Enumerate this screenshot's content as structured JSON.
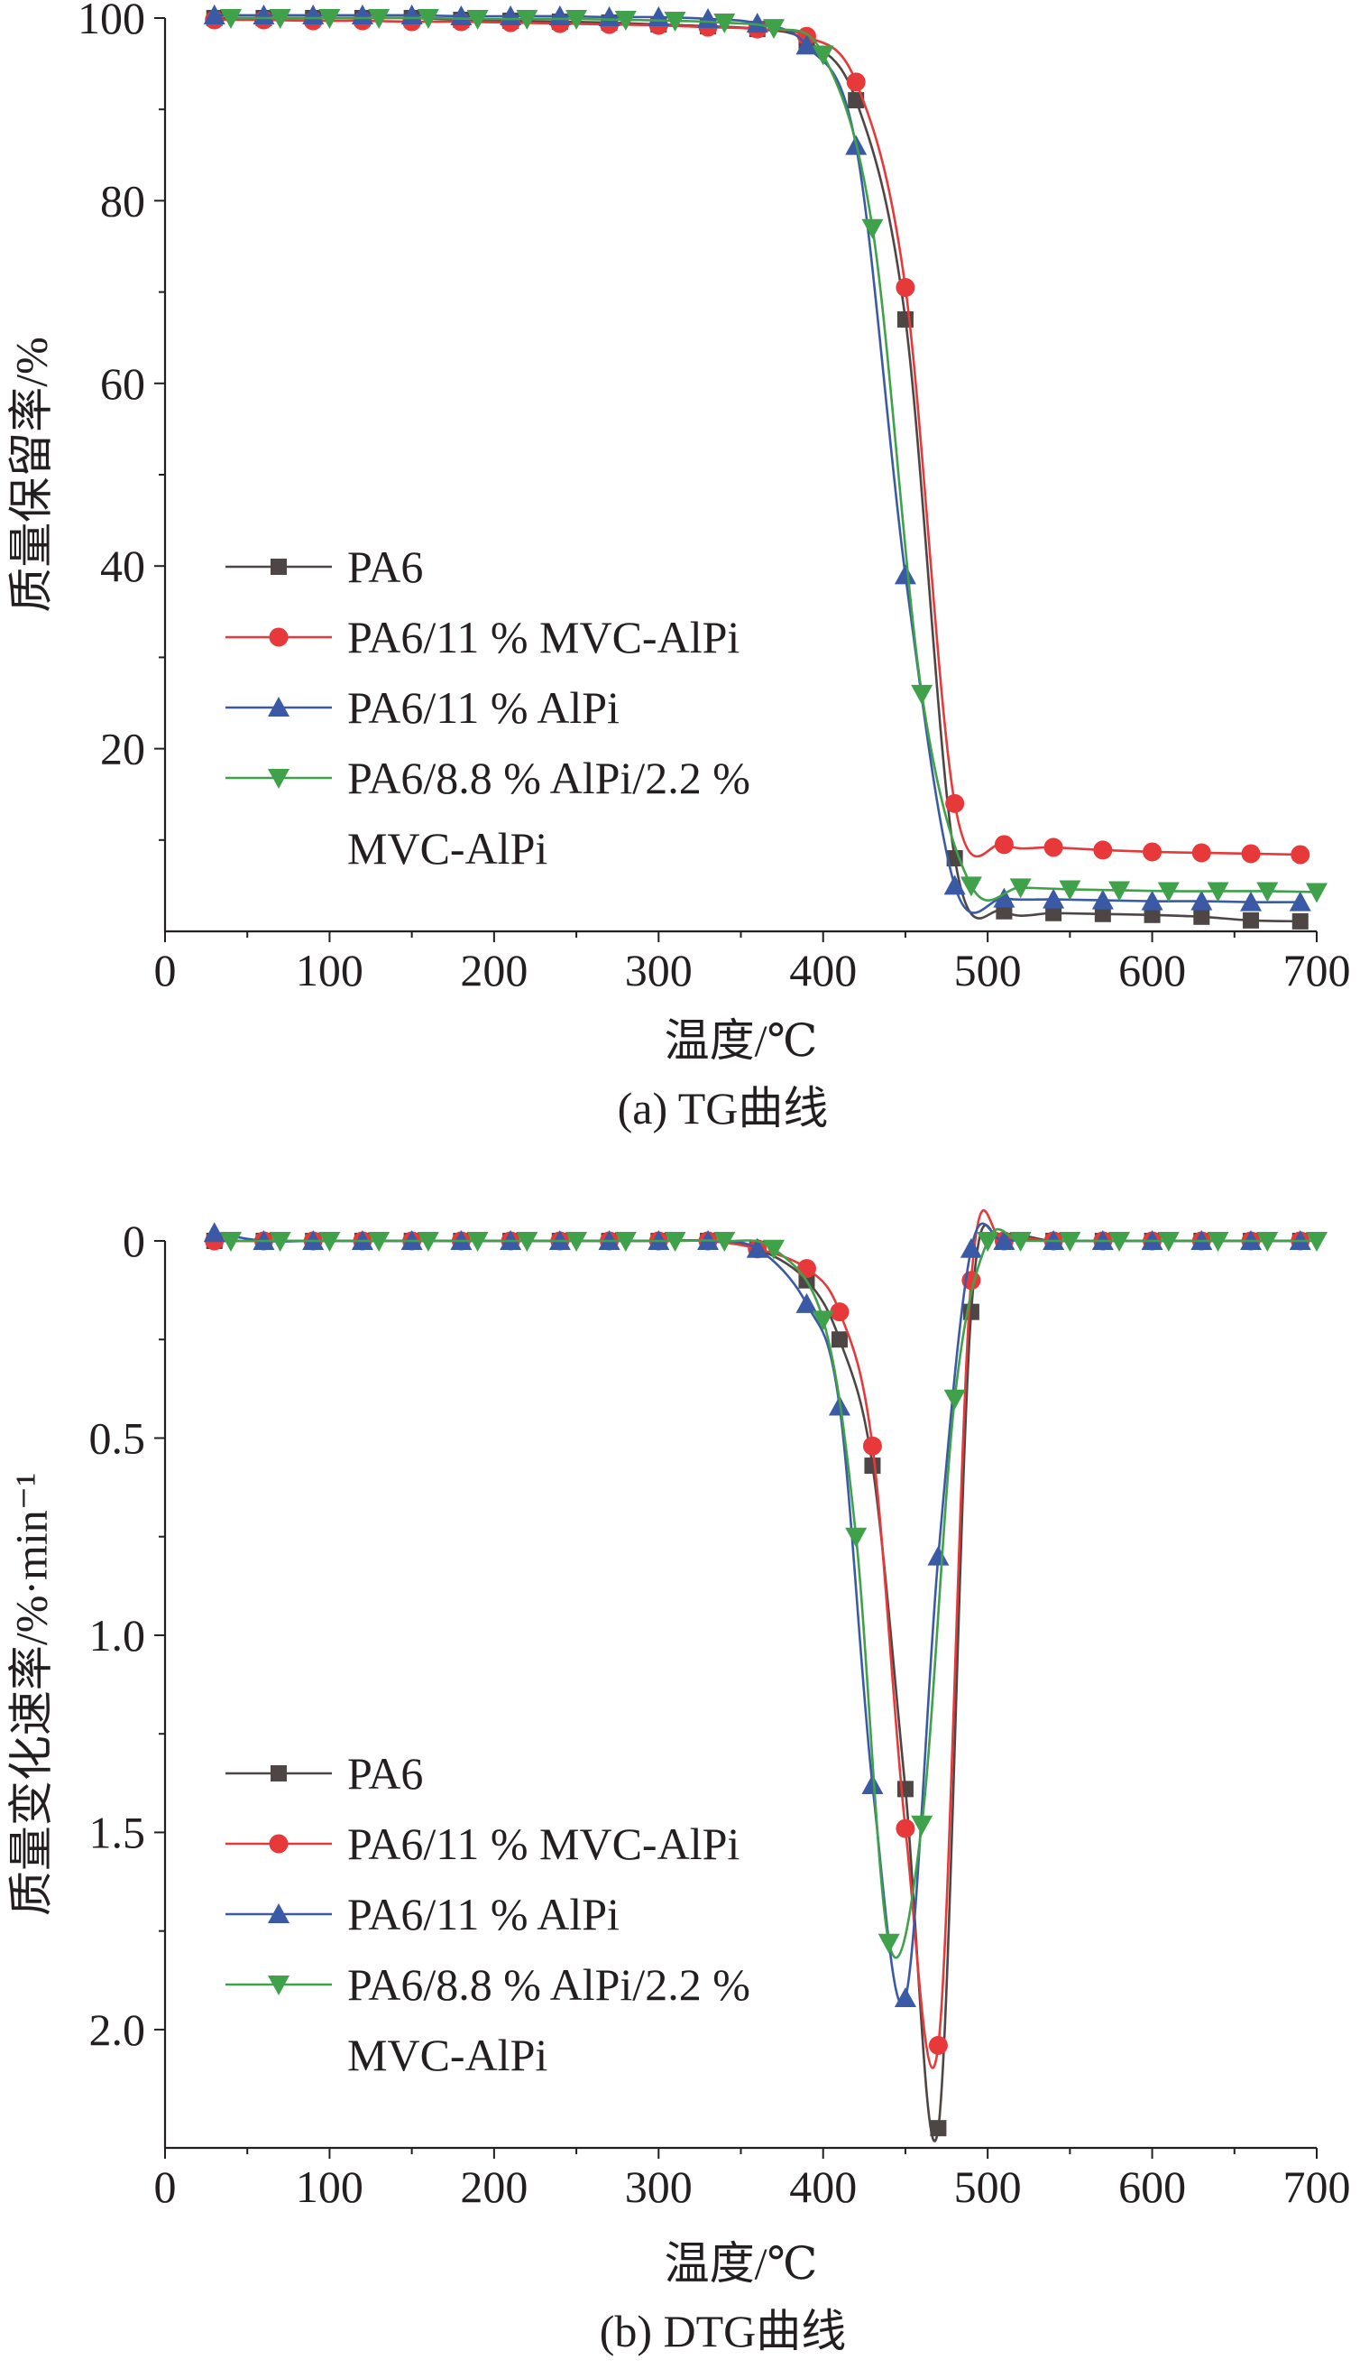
{
  "chart_data": [
    {
      "type": "line",
      "caption": "(a) TG曲线",
      "xlabel": "温度/℃",
      "ylabel": "质量保留率/%",
      "xlim": [
        0,
        700
      ],
      "ylim": [
        0,
        100
      ],
      "xticks": [
        0,
        100,
        200,
        300,
        400,
        500,
        600,
        700
      ],
      "yticks": [
        20,
        40,
        60,
        80,
        100
      ],
      "ytick_labels": [
        "20",
        "40",
        "60",
        "80",
        "100"
      ],
      "legend_position": "left-middle",
      "series": [
        {
          "name": "PA6",
          "color": "#4d4644",
          "marker": "square",
          "x": [
            30,
            60,
            90,
            120,
            150,
            180,
            210,
            240,
            270,
            300,
            330,
            360,
            390,
            420,
            450,
            480,
            510,
            540,
            570,
            600,
            630,
            660,
            690
          ],
          "y": [
            100,
            100,
            100,
            100,
            100,
            99.8,
            99.7,
            99.6,
            99.5,
            99.3,
            99.1,
            98.8,
            97.5,
            91,
            67,
            8,
            2.2,
            2.0,
            1.9,
            1.8,
            1.6,
            1.2,
            1.1
          ]
        },
        {
          "name": "PA6/11 % MVC-AlPi",
          "color": "#e8393a",
          "marker": "circle",
          "x": [
            30,
            60,
            90,
            120,
            150,
            180,
            210,
            240,
            270,
            300,
            330,
            360,
            390,
            420,
            450,
            480,
            510,
            540,
            570,
            600,
            630,
            660,
            690
          ],
          "y": [
            99.8,
            99.8,
            99.7,
            99.7,
            99.6,
            99.6,
            99.5,
            99.4,
            99.3,
            99.2,
            99,
            98.8,
            98,
            93,
            70.5,
            14,
            9.5,
            9.2,
            8.9,
            8.7,
            8.6,
            8.5,
            8.4
          ]
        },
        {
          "name": "PA6/11 % AlPi",
          "color": "#3b5aa6",
          "marker": "triangle-up",
          "x": [
            30,
            60,
            90,
            120,
            150,
            180,
            210,
            240,
            270,
            300,
            330,
            360,
            390,
            420,
            450,
            480,
            510,
            540,
            570,
            600,
            630,
            660,
            690
          ],
          "y": [
            100.3,
            100.3,
            100.3,
            100.3,
            100.3,
            100.2,
            100.2,
            100.2,
            100.1,
            100.1,
            99.9,
            99.4,
            97,
            86,
            39,
            5,
            3.6,
            3.5,
            3.4,
            3.3,
            3.3,
            3.2,
            3.2
          ]
        },
        {
          "name": "PA6/8.8 % AlPi/2.2 %",
          "name_line2": "MVC-AlPi",
          "color": "#3fa14a",
          "marker": "triangle-down",
          "x": [
            40,
            70,
            100,
            130,
            160,
            190,
            220,
            250,
            280,
            310,
            340,
            370,
            400,
            430,
            460,
            490,
            520,
            550,
            580,
            610,
            640,
            670,
            700
          ],
          "y": [
            100,
            100,
            100,
            100,
            100,
            99.9,
            99.9,
            99.9,
            99.8,
            99.7,
            99.5,
            98.9,
            96,
            77,
            26,
            5,
            4.8,
            4.6,
            4.5,
            4.4,
            4.4,
            4.4,
            4.3
          ]
        }
      ]
    },
    {
      "type": "line",
      "caption": "(b) DTG曲线",
      "xlabel": "温度/℃",
      "ylabel": "质量变化速率/%·min⁻¹",
      "xlim": [
        0,
        700
      ],
      "ylim": [
        0,
        2.3
      ],
      "y_inverted": true,
      "xticks": [
        0,
        100,
        200,
        300,
        400,
        500,
        600,
        700
      ],
      "yticks": [
        0,
        0.5,
        1.0,
        1.5,
        2.0
      ],
      "ytick_labels": [
        "0",
        "0.5",
        "1.0",
        "1.5",
        "2.0"
      ],
      "legend_position": "left-bottom",
      "series": [
        {
          "name": "PA6",
          "color": "#4d4644",
          "marker": "square",
          "x": [
            30,
            60,
            90,
            120,
            150,
            180,
            210,
            240,
            270,
            300,
            330,
            360,
            390,
            410,
            430,
            450,
            470,
            490,
            510,
            540,
            570,
            600,
            630,
            660,
            690
          ],
          "y": [
            0,
            0,
            0,
            0,
            0,
            0,
            0,
            0,
            0,
            0,
            0,
            0.02,
            0.1,
            0.25,
            0.57,
            1.39,
            2.25,
            0.18,
            0,
            0,
            0,
            0,
            0,
            0,
            0
          ]
        },
        {
          "name": "PA6/11 % MVC-AlPi",
          "color": "#e8393a",
          "marker": "circle",
          "x": [
            30,
            60,
            90,
            120,
            150,
            180,
            210,
            240,
            270,
            300,
            330,
            360,
            390,
            410,
            430,
            450,
            470,
            490,
            510,
            540,
            570,
            600,
            630,
            660,
            690
          ],
          "y": [
            0,
            0,
            0,
            0,
            0,
            0,
            0,
            0,
            0,
            0,
            0,
            0.02,
            0.07,
            0.18,
            0.52,
            1.49,
            2.04,
            0.1,
            0,
            0,
            0,
            0,
            0,
            0,
            0
          ]
        },
        {
          "name": "PA6/11 % AlPi",
          "color": "#3b5aa6",
          "marker": "triangle-up",
          "x": [
            30,
            60,
            90,
            120,
            150,
            180,
            210,
            240,
            270,
            300,
            330,
            360,
            390,
            410,
            430,
            450,
            470,
            490,
            510,
            540,
            570,
            600,
            630,
            660,
            690
          ],
          "y": [
            -0.02,
            0,
            0,
            0,
            0,
            0,
            0,
            0,
            0,
            0,
            0,
            0.02,
            0.16,
            0.42,
            1.38,
            1.92,
            0.8,
            0.02,
            0,
            0,
            0,
            0,
            0,
            0,
            0
          ]
        },
        {
          "name": "PA6/8.8 % AlPi/2.2 %",
          "name_line2": "MVC-AlPi",
          "color": "#3fa14a",
          "marker": "triangle-down",
          "x": [
            40,
            70,
            100,
            130,
            160,
            190,
            220,
            250,
            280,
            310,
            340,
            370,
            400,
            420,
            440,
            460,
            480,
            500,
            520,
            550,
            580,
            610,
            640,
            670,
            700
          ],
          "y": [
            0,
            0,
            0,
            0,
            0,
            0,
            0,
            0,
            0,
            0,
            0,
            0.02,
            0.2,
            0.75,
            1.78,
            1.48,
            0.4,
            0,
            0,
            0,
            0,
            0,
            0,
            0,
            0
          ]
        }
      ]
    }
  ]
}
